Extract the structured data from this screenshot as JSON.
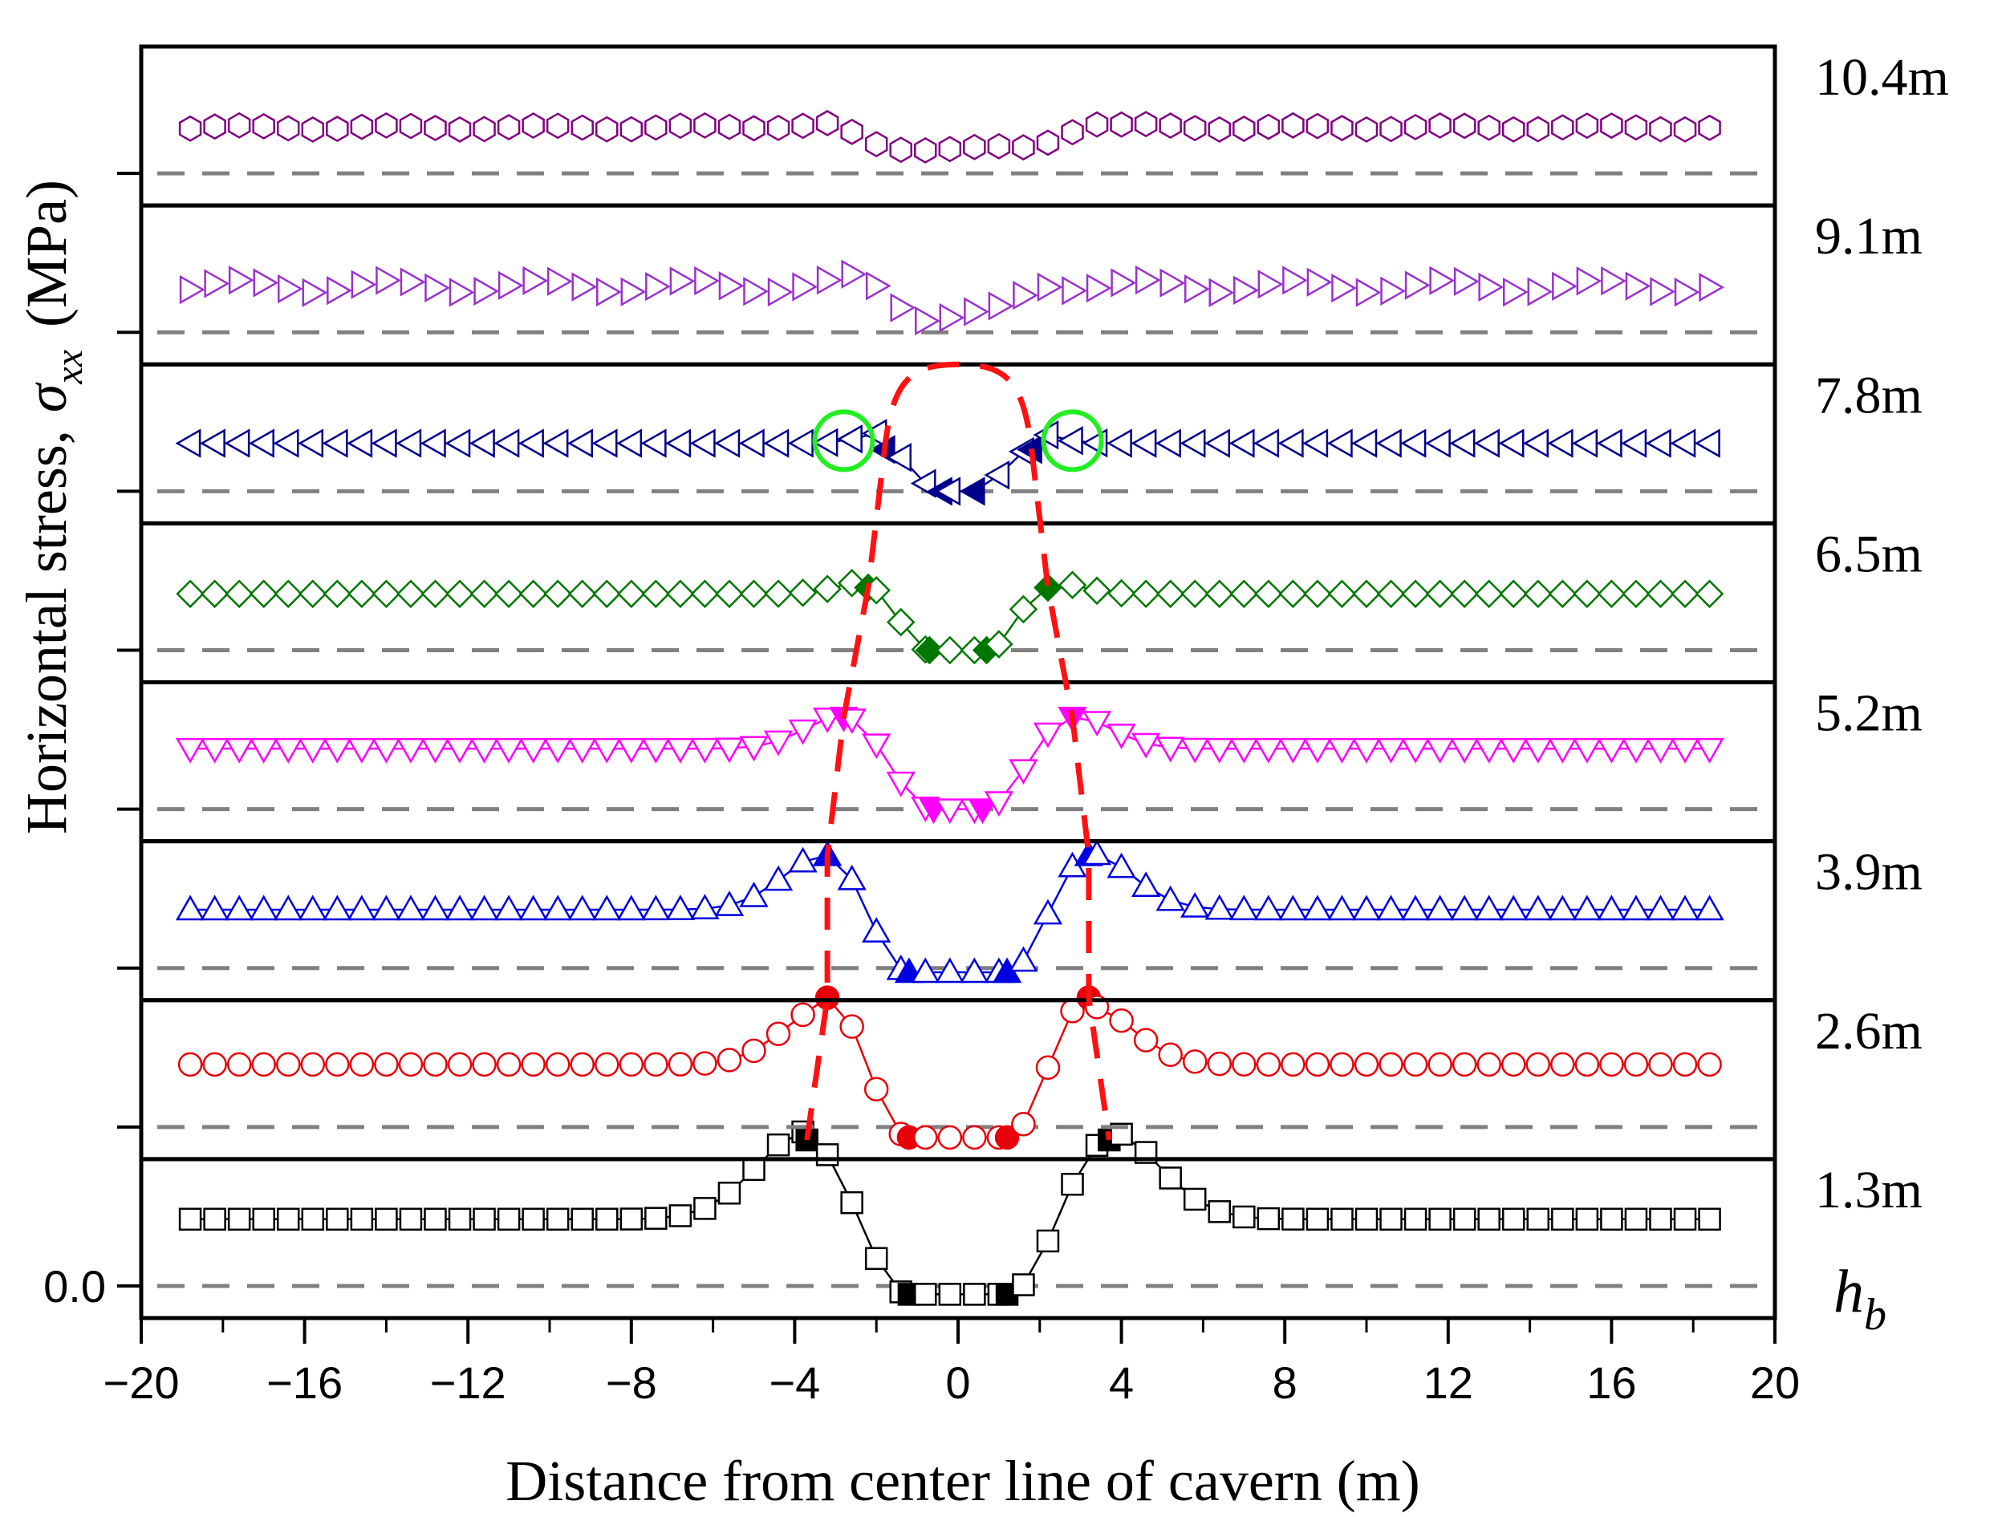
{
  "chart_data": {
    "type": "scatter",
    "title": "",
    "xlabel": "Distance from center line of cavern (m)",
    "ylabel": "Horizontal stress,",
    "ylabel_symbol": "σ",
    "ylabel_subscript": "xx",
    "ylabel_unit": "(MPa)",
    "xlim": [
      -20,
      20
    ],
    "x_ticks": [
      -20,
      -16,
      -12,
      -8,
      -4,
      0,
      4,
      8,
      12,
      16,
      20
    ],
    "x_tick_labels": [
      "−20",
      "−16",
      "−12",
      "−8",
      "−4",
      "0",
      "4",
      "8",
      "12",
      "16",
      "20"
    ],
    "y_tick_label": "0.0",
    "baseline_label": "h",
    "baseline_label_sub": "b",
    "series": [
      {
        "name": "1.3m",
        "marker": "square",
        "color": "#000000",
        "line": true,
        "baseline": 0.0,
        "far": 0.32,
        "edge": 0.74,
        "peak": 0.7,
        "center": -0.04,
        "peak_x": 3.7,
        "center_half": 1.2,
        "wave": 0.0
      },
      {
        "name": "2.6m",
        "marker": "circle",
        "color": "#e8000b",
        "line": true,
        "baseline": 0.0,
        "far": 0.3,
        "edge": 0.58,
        "peak": 0.62,
        "center": -0.05,
        "peak_x": 3.2,
        "center_half": 1.2,
        "wave": 0.0
      },
      {
        "name": "3.9m",
        "marker": "triangle-up",
        "color": "#0000e0",
        "line": true,
        "baseline": 0.0,
        "far": 0.28,
        "edge": 0.55,
        "peak": 0.54,
        "center": -0.02,
        "peak_x": 3.2,
        "center_half": 1.2,
        "wave": 0.0
      },
      {
        "name": "5.2m",
        "marker": "triangle-down",
        "color": "#ff00ff",
        "line": true,
        "baseline": 0.0,
        "far": 0.29,
        "edge": 0.45,
        "peak": 0.44,
        "center": 0.0,
        "peak_x": 2.8,
        "center_half": 0.6,
        "wave": 0.0
      },
      {
        "name": "6.5m",
        "marker": "diamond",
        "color": "#007700",
        "line": true,
        "baseline": 0.0,
        "far": 0.27,
        "edge": 0.33,
        "peak": 0.3,
        "center": 0.0,
        "peak_x": 2.2,
        "center_half": 0.7,
        "wave": 0.0
      },
      {
        "name": "7.8m",
        "marker": "triangle-left",
        "color": "#00008b",
        "line": true,
        "baseline": 0.0,
        "far": 0.23,
        "edge": 0.28,
        "peak": 0.2,
        "center": 0.0,
        "peak_x": 1.8,
        "center_half": 0.4,
        "wave": 0.0
      },
      {
        "name": "9.1m",
        "marker": "triangle-right",
        "color": "#9932cc",
        "line": false,
        "baseline": 0.0,
        "far": 0.22,
        "edge": 0.23,
        "peak": 0.25,
        "center": 0.08,
        "peak_x": 2.6,
        "center_half": 0.6,
        "wave": 0.03
      },
      {
        "name": "10.4m",
        "marker": "hexagon",
        "color": "#800080",
        "line": false,
        "baseline": 0.0,
        "far": 0.22,
        "edge": 0.23,
        "peak": 0.24,
        "center": 0.12,
        "peak_x": 3.5,
        "center_half": 1.5,
        "wave": 0.01
      }
    ],
    "filled_points": {
      "1.3m": [
        -3.7,
        -1.2,
        1.2,
        3.7
      ],
      "2.6m": [
        -3.2,
        -1.2,
        1.2,
        3.2
      ],
      "3.9m": [
        -3.2,
        -1.2,
        1.2,
        3.2
      ],
      "5.2m": [
        -2.8,
        -0.6,
        0.6,
        2.8
      ],
      "6.5m": [
        -2.2,
        -0.7,
        0.7,
        2.2
      ],
      "7.8m": [
        -1.8,
        -0.4,
        0.4,
        1.8
      ]
    },
    "annotations": {
      "trend_lines": "red dashed lines tracing the stress peak positions across depths, joined by a dome over 7.8m",
      "highlight_circles": "green circles at x ≈ −2.8 and x ≈ 2.8 on the 7.8m series"
    },
    "legend": "none",
    "grid": false
  }
}
